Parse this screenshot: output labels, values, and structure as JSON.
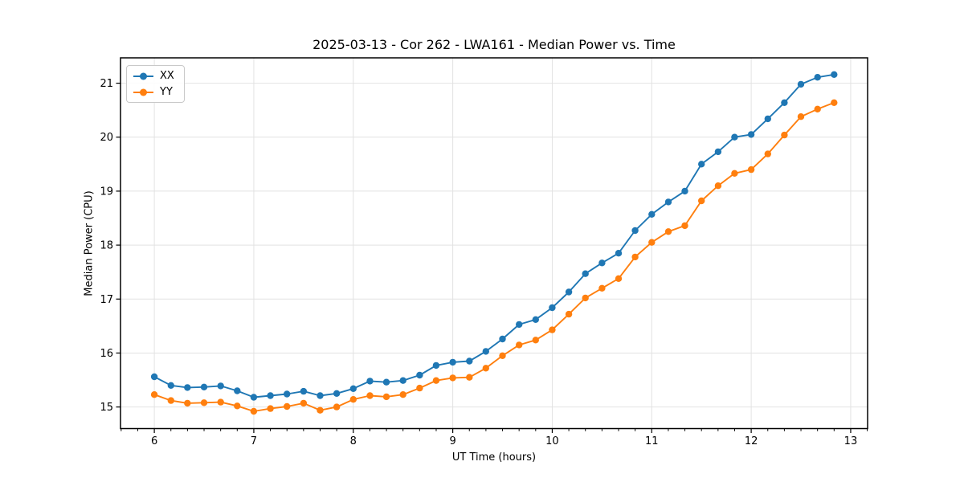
{
  "chart_data": {
    "type": "line",
    "title": "2025-03-13 - Cor 262 - LWA161 - Median Power vs. Time",
    "xlabel": "UT Time (hours)",
    "ylabel": "Median Power (CPU)",
    "xlim": [
      5.66,
      13.17
    ],
    "ylim": [
      14.6,
      21.47
    ],
    "xticks": [
      6,
      7,
      8,
      9,
      10,
      11,
      12,
      13
    ],
    "yticks": [
      15,
      16,
      17,
      18,
      19,
      20,
      21
    ],
    "x_minor_interval": 0.166667,
    "grid": true,
    "legend_position": "upper-left",
    "x": [
      6.0,
      6.167,
      6.333,
      6.5,
      6.667,
      6.833,
      7.0,
      7.167,
      7.333,
      7.5,
      7.667,
      7.833,
      8.0,
      8.167,
      8.333,
      8.5,
      8.667,
      8.833,
      9.0,
      9.167,
      9.333,
      9.5,
      9.667,
      9.833,
      10.0,
      10.167,
      10.333,
      10.5,
      10.667,
      10.833,
      11.0,
      11.167,
      11.333,
      11.5,
      11.667,
      11.833,
      12.0,
      12.167,
      12.333,
      12.5,
      12.667,
      12.833
    ],
    "series": [
      {
        "name": "XX",
        "color": "#1f77b4",
        "values": [
          15.56,
          15.4,
          15.36,
          15.37,
          15.39,
          15.3,
          15.18,
          15.21,
          15.24,
          15.29,
          15.21,
          15.25,
          15.34,
          15.48,
          15.46,
          15.49,
          15.59,
          15.77,
          15.83,
          15.85,
          16.03,
          16.26,
          16.53,
          16.62,
          16.84,
          17.13,
          17.47,
          17.67,
          17.85,
          18.27,
          18.57,
          18.8,
          19.0,
          19.5,
          19.73,
          20.0,
          20.05,
          20.34,
          20.64,
          20.98,
          21.11,
          21.16
        ]
      },
      {
        "name": "YY",
        "color": "#ff7f0e",
        "values": [
          15.23,
          15.12,
          15.07,
          15.08,
          15.09,
          15.02,
          14.92,
          14.97,
          15.01,
          15.07,
          14.94,
          15.0,
          15.14,
          15.21,
          15.19,
          15.23,
          15.35,
          15.49,
          15.54,
          15.55,
          15.72,
          15.95,
          16.15,
          16.24,
          16.43,
          16.72,
          17.02,
          17.2,
          17.38,
          17.78,
          18.05,
          18.25,
          18.36,
          18.82,
          19.1,
          19.33,
          19.4,
          19.69,
          20.04,
          20.38,
          20.52,
          20.64
        ]
      }
    ]
  }
}
